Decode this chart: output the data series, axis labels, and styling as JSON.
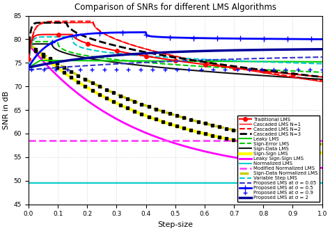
{
  "title": "Comparison of SNRs for different LMS Algorithms",
  "xlabel": "Step-size",
  "ylabel": "SNR in dB",
  "xlim": [
    0,
    1.0
  ],
  "ylim": [
    45,
    85
  ],
  "yticks": [
    45,
    50,
    55,
    60,
    65,
    70,
    75,
    80,
    85
  ],
  "xticks": [
    0,
    0.1,
    0.2,
    0.3,
    0.4,
    0.5,
    0.6,
    0.7,
    0.8,
    0.9,
    1.0
  ],
  "background": "#ffffff",
  "grid_color": "#aaaaaa",
  "legend_fontsize": 5.0,
  "title_fontsize": 8.5,
  "axis_fontsize": 8.0,
  "tick_fontsize": 6.5
}
